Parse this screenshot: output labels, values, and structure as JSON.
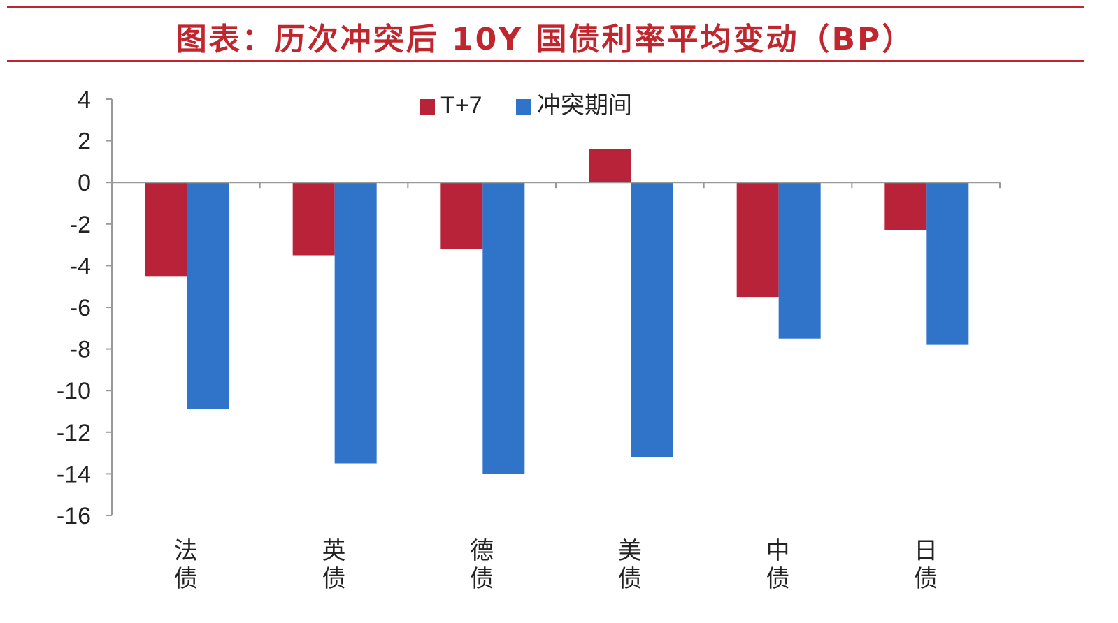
{
  "chart_data": {
    "type": "bar",
    "title": "图表：历次冲突后 10Y 国债利率平均变动（BP）",
    "categories": [
      "法\n债",
      "英\n债",
      "德\n债",
      "美\n债",
      "中\n债",
      "日\n债"
    ],
    "series": [
      {
        "name": "T+7",
        "color": "#b8233a",
        "values": [
          -4.5,
          -3.5,
          -3.2,
          1.6,
          -5.5,
          -2.3
        ]
      },
      {
        "name": "冲突期间",
        "color": "#2f74c9",
        "values": [
          -10.9,
          -13.5,
          -14.0,
          -13.2,
          -7.5,
          -7.8
        ]
      }
    ],
    "ylim": [
      -16,
      4
    ],
    "yticks": [
      4,
      2,
      0,
      -2,
      -4,
      -6,
      -8,
      -10,
      -12,
      -14,
      -16
    ],
    "legend": "top-center",
    "grid": false
  }
}
